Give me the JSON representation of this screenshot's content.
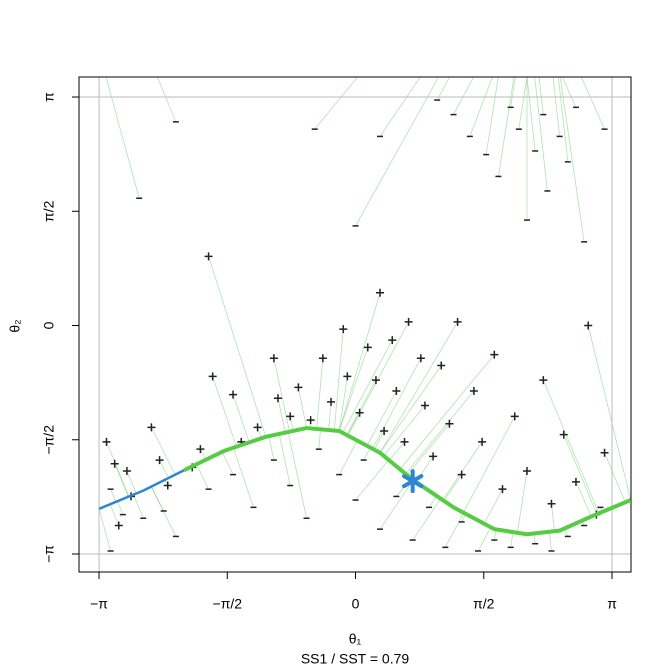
{
  "chart_data": {
    "type": "scatter",
    "x_label": "θ₁",
    "y_label": "θ₂",
    "subtitle": "SS1 / SST = 0.79",
    "xlim": [
      -3.387,
      3.374
    ],
    "ylim": [
      -3.389,
      3.417
    ],
    "xticks": [
      {
        "value": -3.1416,
        "label": "−π"
      },
      {
        "value": -1.5708,
        "label": "−π/2"
      },
      0,
      {
        "value": 1.5708,
        "label": "π/2"
      },
      {
        "value": 3.1416,
        "label": "π"
      }
    ],
    "yticks": [
      {
        "value": -3.1416,
        "label": "−π"
      },
      {
        "value": -1.5708,
        "label": "−π/2"
      },
      0,
      {
        "value": 1.5708,
        "label": "π/2"
      },
      {
        "value": 3.1416,
        "label": "π"
      }
    ],
    "boundary_lines": [
      -3.1416,
      3.1416
    ],
    "point_color": "#222222",
    "projection_color": "#8fd88f",
    "points": [
      {
        "name": "+",
        "x": [
          -3.05,
          -2.95,
          -2.8,
          -2.75,
          -2.9,
          -2.5,
          -2.4,
          -2.3,
          -2.0,
          -1.9,
          -1.75,
          -1.5,
          -1.4,
          -1.2,
          -1.0,
          -0.95,
          -0.8,
          -0.7,
          -0.55,
          -0.4,
          -0.3,
          -0.15,
          -0.1,
          0.05,
          0.15,
          0.25,
          0.35,
          0.45,
          0.5,
          0.6,
          0.65,
          0.8,
          0.85,
          0.95,
          1.05,
          1.15,
          1.25,
          1.3,
          1.45,
          1.55,
          1.7,
          1.8,
          1.95,
          2.1,
          2.3,
          2.4,
          2.55,
          2.7,
          2.85,
          2.95,
          3.05,
          0.3,
          -1.8
        ],
        "values": [
          -1.6,
          -1.9,
          -2.0,
          -2.35,
          -2.75,
          -1.4,
          -1.85,
          -2.2,
          -1.95,
          -1.7,
          -0.7,
          -0.95,
          -1.6,
          -1.4,
          -0.45,
          -1.0,
          -1.25,
          -0.85,
          -1.3,
          -0.45,
          -1.05,
          -0.05,
          -0.7,
          -1.2,
          -0.3,
          -0.75,
          -1.45,
          -0.2,
          -0.9,
          -1.6,
          0.05,
          -0.45,
          -1.1,
          -1.8,
          -0.55,
          -1.35,
          0.05,
          -2.05,
          -0.9,
          -1.6,
          -0.4,
          -2.25,
          -1.25,
          -2.0,
          -0.75,
          -2.45,
          -1.5,
          -2.15,
          0.0,
          -2.6,
          -1.75,
          0.45,
          0.95
        ]
      },
      {
        "name": "−",
        "x": [
          -3.0,
          -2.85,
          -2.6,
          -2.2,
          -1.8,
          -1.5,
          -1.25,
          -1.0,
          -0.8,
          -0.6,
          -0.45,
          -0.2,
          0.0,
          0.1,
          0.3,
          0.5,
          0.7,
          0.9,
          1.1,
          1.3,
          1.5,
          1.7,
          1.9,
          2.2,
          2.4,
          2.6,
          2.8,
          3.0,
          -3.0,
          -2.2,
          -2.65,
          -0.5,
          0.0,
          0.3,
          1.0,
          1.2,
          1.4,
          1.6,
          1.75,
          1.9,
          2.0,
          2.1,
          2.2,
          2.3,
          2.35,
          2.5,
          2.6,
          2.7,
          2.8,
          3.05,
          -2.35
        ],
        "values": [
          -2.25,
          -2.6,
          -2.65,
          -2.9,
          -2.25,
          -2.05,
          -2.5,
          -1.85,
          -2.2,
          -2.65,
          -1.7,
          -2.05,
          -2.4,
          -1.85,
          -2.8,
          -2.35,
          -2.95,
          -2.5,
          -3.05,
          -2.7,
          -3.1,
          -2.95,
          -3.05,
          -3.0,
          -3.1,
          -2.9,
          -2.75,
          -2.5,
          -3.1,
          2.8,
          1.75,
          2.7,
          1.37,
          2.6,
          3.1,
          2.9,
          2.6,
          2.35,
          2.05,
          3.0,
          2.7,
          1.45,
          2.4,
          2.9,
          1.85,
          2.6,
          2.25,
          3.0,
          1.15,
          2.7,
          -2.55
        ]
      }
    ],
    "curve": [
      {
        "color": "#2f86d0",
        "x": [
          -3.14,
          -2.6,
          -2.1
        ],
        "values": [
          -2.52,
          -2.27,
          -1.99
        ]
      },
      {
        "color": "#55cc44",
        "x": [
          -2.1,
          -1.6,
          -1.1,
          -0.6,
          -0.2,
          0.3,
          0.7,
          1.2,
          1.7,
          2.1,
          2.5,
          2.9,
          3.37
        ],
        "values": [
          -1.99,
          -1.72,
          -1.53,
          -1.41,
          -1.45,
          -1.75,
          -2.12,
          -2.5,
          -2.8,
          -2.87,
          -2.82,
          -2.62,
          -2.4
        ]
      }
    ],
    "star": {
      "color": "#2f86d0",
      "x": 0.7,
      "value": -2.14
    }
  }
}
